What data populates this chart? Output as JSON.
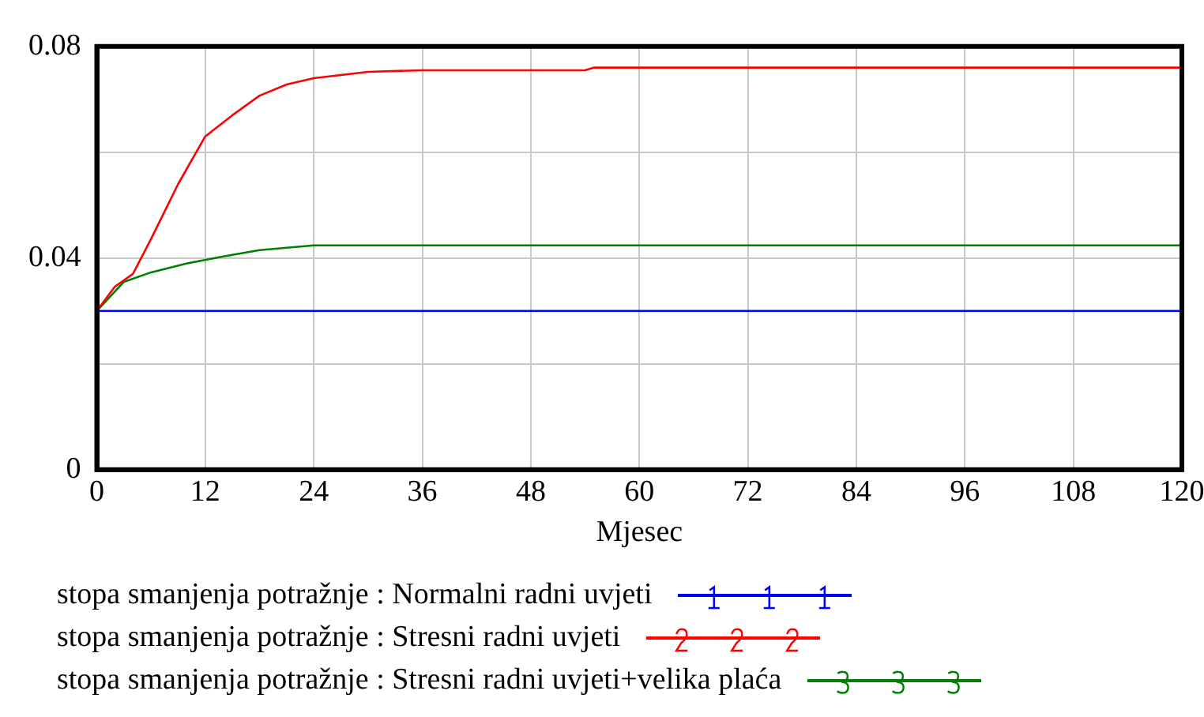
{
  "chart_data": {
    "type": "line",
    "xlabel": "Mjesec",
    "xlim": [
      0,
      120
    ],
    "xticks": [
      0,
      12,
      24,
      36,
      48,
      60,
      72,
      84,
      96,
      108,
      120
    ],
    "ylim": [
      0,
      0.08
    ],
    "yticks": [
      0,
      {
        "value": 0.02,
        "label": null
      },
      0.04,
      {
        "value": 0.06,
        "label": null
      },
      0.08
    ],
    "grid": true,
    "legend": "bottom",
    "line_style": "solid",
    "series": [
      {
        "name": "stopa smanjenja potražnje : Normalni radni uvjeti",
        "color": "#0000ff",
        "x": [
          0,
          120
        ],
        "values": [
          0.03,
          0.03
        ]
      },
      {
        "name": "stopa smanjenja potražnje : Stresni radni uvjeti",
        "color": "#ff0000",
        "x": [
          0,
          2,
          4,
          6,
          9,
          12,
          15,
          18,
          21,
          24,
          30,
          36,
          54,
          55,
          120
        ],
        "values": [
          0.03,
          0.0346,
          0.037,
          0.0436,
          0.054,
          0.063,
          0.067,
          0.0707,
          0.0728,
          0.074,
          0.0752,
          0.0755,
          0.0755,
          0.076,
          0.076
        ]
      },
      {
        "name": "stopa smanjenja potražnje : Stresni radni uvjeti+velika plaća",
        "color": "#008000",
        "x": [
          0,
          3,
          6,
          10,
          14,
          18,
          24,
          120
        ],
        "values": [
          0.03,
          0.0355,
          0.0373,
          0.039,
          0.0403,
          0.0415,
          0.0424,
          0.0424
        ]
      }
    ]
  }
}
